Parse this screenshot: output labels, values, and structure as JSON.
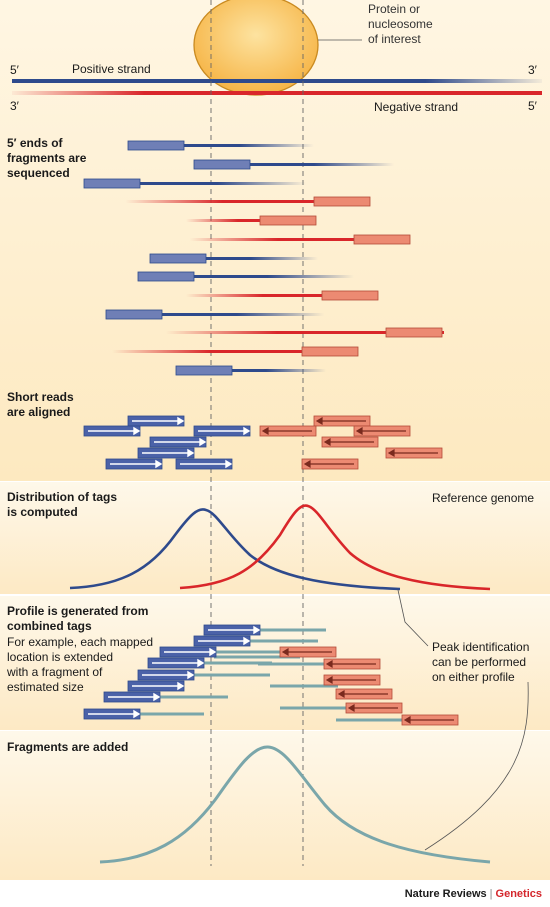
{
  "labels": {
    "protein": "Protein or\nnucleosome\nof interest",
    "positive_strand": "Positive strand",
    "negative_strand": "Negative strand",
    "five_prime": "5′",
    "three_prime": "3′",
    "step1": "5′ ends of\nfragments are\nsequenced",
    "step2": "Short reads\nare aligned",
    "step3": "Distribution of tags\nis computed",
    "reference_genome": "Reference genome",
    "step4_title": "Profile is generated from\ncombined tags",
    "step4_body": "For example, each mapped\nlocation is extended\nwith a fragment of\nestimated size",
    "peak_note": "Peak identification\ncan be performed\non either profile",
    "step5": "Fragments are added"
  },
  "footer": {
    "journal": "Nature Reviews",
    "section": "Genetics"
  },
  "colors": {
    "positive": "#3a4f8f",
    "positive_box": "#6f7fb6",
    "negative": "#d9262a",
    "negative_box": "#ec8a72",
    "protein": "#f9c15a",
    "teal": "#7aa6aa",
    "peak_label": "#1a1a1a"
  }
}
